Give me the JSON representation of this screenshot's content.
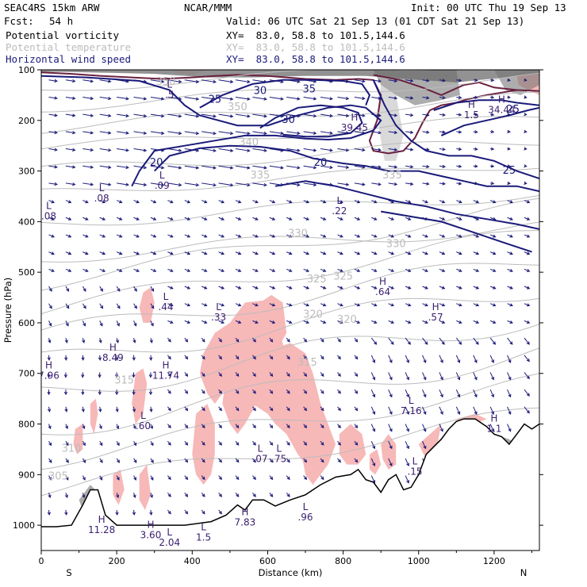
{
  "header": {
    "model": "SEAC4RS 15km ARW",
    "org": "NCAR/MMM",
    "init": "Init: 00 UTC Thu 19 Sep 13",
    "fcst_label": "Fcst:",
    "fcst_value": "54 h",
    "valid": "Valid: 06 UTC Sat 21 Sep 13 (01 CDT Sat 21 Sep 13)"
  },
  "fields": [
    {
      "name": "Potential vorticity",
      "color": "#000000",
      "xy": "XY=  83.0, 58.8 to 101.5,144.6"
    },
    {
      "name": "Potential temperature",
      "color": "#bcbcbc",
      "xy": "XY=  83.0, 58.8 to 101.5,144.6"
    },
    {
      "name": "Horizontal wind speed",
      "color": "#1a1a7a",
      "xy": "XY=  83.0, 58.8 to 101.5,144.6"
    }
  ],
  "chart_data": {
    "type": "cross-section",
    "xlabel": "Distance (km)",
    "ylabel": "Pressure (hPa)",
    "xlim": [
      0,
      1320
    ],
    "ylim": [
      1050,
      100
    ],
    "x_ticks": [
      0,
      200,
      400,
      600,
      800,
      1000,
      1200
    ],
    "y_ticks": [
      100,
      200,
      300,
      400,
      500,
      600,
      700,
      800,
      900,
      1000
    ],
    "end_labels": {
      "left": "S",
      "right": "N"
    },
    "colors": {
      "wind_speed": "#1a1a7a",
      "theta": "#bcbcbc",
      "pv_high": "#f7b8b8",
      "pv_contour": "#6a2040",
      "terrain": "#000000",
      "annotation": "#3a1e6e"
    },
    "wind_speed_contours": [
      {
        "value": "20",
        "x": 305,
        "p": 290
      },
      {
        "value": "20",
        "x": 740,
        "p": 290
      },
      {
        "value": "25",
        "x": 460,
        "p": 165
      },
      {
        "value": "25",
        "x": 1240,
        "p": 305
      },
      {
        "value": "30",
        "x": 655,
        "p": 205
      },
      {
        "value": "30",
        "x": 580,
        "p": 148
      },
      {
        "value": "35",
        "x": 710,
        "p": 145
      },
      {
        "value": "25",
        "x": 1250,
        "p": 185
      }
    ],
    "theta_labels": [
      {
        "value": "350",
        "x": 330,
        "p": 130
      },
      {
        "value": "350",
        "x": 520,
        "p": 180
      },
      {
        "value": "340",
        "x": 550,
        "p": 250
      },
      {
        "value": "335",
        "x": 580,
        "p": 315
      },
      {
        "value": "335",
        "x": 930,
        "p": 315
      },
      {
        "value": "330",
        "x": 680,
        "p": 430
      },
      {
        "value": "330",
        "x": 940,
        "p": 450
      },
      {
        "value": "325",
        "x": 730,
        "p": 520
      },
      {
        "value": "325",
        "x": 800,
        "p": 515
      },
      {
        "value": "320",
        "x": 720,
        "p": 590
      },
      {
        "value": "320",
        "x": 810,
        "p": 600
      },
      {
        "value": "315",
        "x": 705,
        "p": 685
      },
      {
        "value": "315",
        "x": 220,
        "p": 720
      },
      {
        "value": "310",
        "x": 80,
        "p": 855
      },
      {
        "value": "305",
        "x": 45,
        "p": 910
      }
    ],
    "extrema": [
      {
        "type": "L",
        "value": ".5",
        "x": 340,
        "p": 135
      },
      {
        "type": "H",
        "value": "39.45",
        "x": 830,
        "p": 200
      },
      {
        "type": "H",
        "value": "1.5",
        "x": 1140,
        "p": 175
      },
      {
        "type": "H",
        "value": "34.44",
        "x": 1220,
        "p": 165
      },
      {
        "type": "L",
        "value": ".09",
        "x": 320,
        "p": 315
      },
      {
        "type": "L",
        "value": ".08",
        "x": 20,
        "p": 375
      },
      {
        "type": "L",
        "value": ".08",
        "x": 160,
        "p": 340
      },
      {
        "type": "L",
        "value": ".22",
        "x": 790,
        "p": 365
      },
      {
        "type": "H",
        "value": ".64",
        "x": 905,
        "p": 525
      },
      {
        "type": "L",
        "value": ".44",
        "x": 330,
        "p": 555
      },
      {
        "type": "L",
        "value": ".33",
        "x": 470,
        "p": 575
      },
      {
        "type": "H",
        "value": ".57",
        "x": 1045,
        "p": 575
      },
      {
        "type": "H",
        "value": "8.49",
        "x": 190,
        "p": 655
      },
      {
        "type": "H",
        "value": "7.96",
        "x": 20,
        "p": 690
      },
      {
        "type": "H",
        "value": "11.74",
        "x": 330,
        "p": 690
      },
      {
        "type": "L",
        "value": "7.16",
        "x": 980,
        "p": 760
      },
      {
        "type": "L",
        "value": ".60",
        "x": 270,
        "p": 790
      },
      {
        "type": "L",
        "value": ".07",
        "x": 580,
        "p": 855
      },
      {
        "type": "L",
        "value": ".75",
        "x": 630,
        "p": 855
      },
      {
        "type": "L",
        "value": ".15",
        "x": 990,
        "p": 880
      },
      {
        "type": "H",
        "value": "1.1",
        "x": 1200,
        "p": 795
      },
      {
        "type": "L",
        "value": ".96",
        "x": 700,
        "p": 970
      },
      {
        "type": "H",
        "value": "7.83",
        "x": 540,
        "p": 980
      },
      {
        "type": "H",
        "value": "11.28",
        "x": 160,
        "p": 995
      },
      {
        "type": "H",
        "value": "3.60",
        "x": 290,
        "p": 1005
      },
      {
        "type": "L",
        "value": "2.04",
        "x": 340,
        "p": 1020
      },
      {
        "type": "L",
        "value": "1.5",
        "x": 430,
        "p": 1010
      }
    ],
    "terrain_surface": [
      [
        0,
        1003
      ],
      [
        40,
        1003
      ],
      [
        80,
        1000
      ],
      [
        110,
        960
      ],
      [
        130,
        930
      ],
      [
        150,
        930
      ],
      [
        170,
        980
      ],
      [
        200,
        1000
      ],
      [
        300,
        1000
      ],
      [
        380,
        1000
      ],
      [
        450,
        993
      ],
      [
        490,
        980
      ],
      [
        520,
        960
      ],
      [
        540,
        970
      ],
      [
        560,
        950
      ],
      [
        590,
        950
      ],
      [
        620,
        962
      ],
      [
        660,
        950
      ],
      [
        700,
        940
      ],
      [
        740,
        920
      ],
      [
        780,
        905
      ],
      [
        820,
        900
      ],
      [
        840,
        890
      ],
      [
        860,
        910
      ],
      [
        880,
        915
      ],
      [
        900,
        935
      ],
      [
        920,
        910
      ],
      [
        940,
        900
      ],
      [
        960,
        930
      ],
      [
        980,
        925
      ],
      [
        1000,
        900
      ],
      [
        1020,
        860
      ],
      [
        1040,
        845
      ],
      [
        1060,
        830
      ],
      [
        1080,
        810
      ],
      [
        1100,
        795
      ],
      [
        1120,
        790
      ],
      [
        1150,
        790
      ],
      [
        1180,
        805
      ],
      [
        1200,
        820
      ],
      [
        1220,
        825
      ],
      [
        1240,
        840
      ],
      [
        1260,
        820
      ],
      [
        1280,
        800
      ],
      [
        1300,
        810
      ],
      [
        1320,
        800
      ]
    ]
  }
}
